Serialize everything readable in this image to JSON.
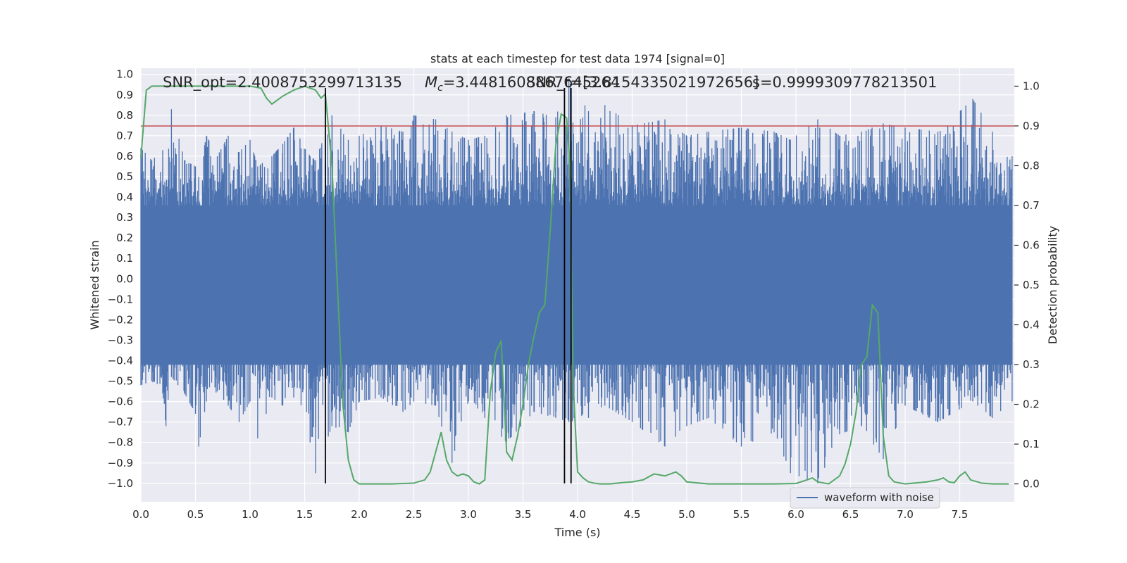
{
  "chart_data": {
    "type": "line",
    "title": "stats at each timestep for test data 1974 [signal=0]",
    "xlabel": "Time (s)",
    "ylabel": "Whitened strain",
    "y2label": "Detection probability",
    "xlim": [
      0.0,
      8.0
    ],
    "ylim": [
      -1.09,
      1.03
    ],
    "y2lim": [
      -0.045,
      1.045
    ],
    "xticks": [
      "0.0",
      "0.5",
      "1.0",
      "1.5",
      "2.0",
      "2.5",
      "3.0",
      "3.5",
      "4.0",
      "4.5",
      "5.0",
      "5.5",
      "6.0",
      "6.5",
      "7.0",
      "7.5"
    ],
    "yticks": [
      "1.0",
      "0.9",
      "0.8",
      "0.7",
      "0.6",
      "0.5",
      "0.4",
      "0.3",
      "0.2",
      "0.1",
      "0.0",
      "−0.1",
      "−0.2",
      "−0.3",
      "−0.4",
      "−0.5",
      "−0.6",
      "−0.7",
      "−0.8",
      "−0.9",
      "−1.0"
    ],
    "y2ticks": [
      "1.0",
      "0.9",
      "0.8",
      "0.7",
      "0.6",
      "0.5",
      "0.4",
      "0.3",
      "0.2",
      "0.1",
      "0.0"
    ],
    "annotations": [
      {
        "text": "SNR_opt=2.4008753299713135",
        "x": 0.2
      },
      {
        "text": "=3.4481608867645264",
        "x": 2.6,
        "prefix_symbol": "M",
        "prefix_sub": "c"
      },
      {
        "text": "SNR_t=[3.8154335021972656]",
        "x": 3.53
      },
      {
        "text": "s=0.9999309778213501",
        "x": 5.6
      }
    ],
    "mc_symbol": "M",
    "mc_subscript": "c",
    "threshold_line": {
      "y2": 0.9,
      "color": "#c44e52"
    },
    "vertical_lines": [
      1.69,
      3.88,
      3.94
    ],
    "legend": [
      {
        "label": "waveform with noise",
        "color": "#4c72b0"
      }
    ],
    "legend_position": "lower-right",
    "series": [
      {
        "name": "waveform with noise",
        "color": "#4c72b0",
        "axis": "left",
        "extremes": [
          {
            "t": 0.0,
            "hi": 0.64,
            "lo": -0.52
          },
          {
            "t": 0.1,
            "hi": 0.58,
            "lo": -0.5
          },
          {
            "t": 0.2,
            "hi": 0.63,
            "lo": -0.56
          },
          {
            "t": 0.23,
            "hi": 0.45,
            "lo": -0.72
          },
          {
            "t": 0.28,
            "hi": 0.83,
            "lo": -0.48
          },
          {
            "t": 0.4,
            "hi": 0.58,
            "lo": -0.56
          },
          {
            "t": 0.5,
            "hi": 0.55,
            "lo": -0.66
          },
          {
            "t": 0.53,
            "hi": 0.5,
            "lo": -0.82
          },
          {
            "t": 0.6,
            "hi": 0.7,
            "lo": -0.6
          },
          {
            "t": 0.7,
            "hi": 0.6,
            "lo": -0.55
          },
          {
            "t": 0.8,
            "hi": 0.7,
            "lo": -0.62
          },
          {
            "t": 0.9,
            "hi": 0.62,
            "lo": -0.7
          },
          {
            "t": 1.0,
            "hi": 0.68,
            "lo": -0.6
          },
          {
            "t": 1.07,
            "hi": 0.55,
            "lo": -0.78
          },
          {
            "t": 1.2,
            "hi": 0.6,
            "lo": -0.58
          },
          {
            "t": 1.3,
            "hi": 0.66,
            "lo": -0.62
          },
          {
            "t": 1.4,
            "hi": 0.74,
            "lo": -0.58
          },
          {
            "t": 1.55,
            "hi": 0.6,
            "lo": -0.8
          },
          {
            "t": 1.6,
            "hi": 0.58,
            "lo": -0.95
          },
          {
            "t": 1.75,
            "hi": 0.8,
            "lo": -0.72
          },
          {
            "t": 1.9,
            "hi": 0.68,
            "lo": -0.75
          },
          {
            "t": 2.0,
            "hi": 0.7,
            "lo": -0.6
          },
          {
            "t": 2.2,
            "hi": 0.75,
            "lo": -0.58
          },
          {
            "t": 2.4,
            "hi": 0.72,
            "lo": -0.65
          },
          {
            "t": 2.5,
            "hi": 0.8,
            "lo": -0.6
          },
          {
            "t": 2.7,
            "hi": 0.78,
            "lo": -0.62
          },
          {
            "t": 2.85,
            "hi": 0.72,
            "lo": -0.9
          },
          {
            "t": 3.0,
            "hi": 0.68,
            "lo": -0.6
          },
          {
            "t": 3.15,
            "hi": 0.7,
            "lo": -0.68
          },
          {
            "t": 3.35,
            "hi": 0.8,
            "lo": -0.8
          },
          {
            "t": 3.6,
            "hi": 0.82,
            "lo": -0.65
          },
          {
            "t": 3.8,
            "hi": 0.79,
            "lo": -0.68
          },
          {
            "t": 3.92,
            "hi": 0.98,
            "lo": -0.7
          },
          {
            "t": 4.1,
            "hi": 0.82,
            "lo": -0.68
          },
          {
            "t": 4.25,
            "hi": 0.85,
            "lo": -0.62
          },
          {
            "t": 4.5,
            "hi": 0.75,
            "lo": -0.7
          },
          {
            "t": 4.8,
            "hi": 0.78,
            "lo": -0.82
          },
          {
            "t": 5.0,
            "hi": 0.7,
            "lo": -0.72
          },
          {
            "t": 5.2,
            "hi": 0.72,
            "lo": -0.68
          },
          {
            "t": 5.5,
            "hi": 0.74,
            "lo": -0.82
          },
          {
            "t": 5.8,
            "hi": 0.72,
            "lo": -0.75
          },
          {
            "t": 5.95,
            "hi": 0.68,
            "lo": -0.95
          },
          {
            "t": 6.2,
            "hi": 0.78,
            "lo": -1.0
          },
          {
            "t": 6.4,
            "hi": 0.7,
            "lo": -0.76
          },
          {
            "t": 6.6,
            "hi": 0.72,
            "lo": -0.72
          },
          {
            "t": 6.8,
            "hi": 0.76,
            "lo": -0.88
          },
          {
            "t": 7.0,
            "hi": 0.74,
            "lo": -0.62
          },
          {
            "t": 7.3,
            "hi": 0.72,
            "lo": -0.7
          },
          {
            "t": 7.62,
            "hi": 0.88,
            "lo": -0.6
          },
          {
            "t": 7.8,
            "hi": 0.72,
            "lo": -0.68
          },
          {
            "t": 7.98,
            "hi": 0.6,
            "lo": -0.6
          }
        ]
      },
      {
        "name": "detection probability",
        "color": "#55a868",
        "axis": "right",
        "x": [
          0.0,
          0.05,
          0.1,
          0.2,
          0.5,
          0.8,
          1.0,
          1.1,
          1.15,
          1.2,
          1.3,
          1.4,
          1.5,
          1.6,
          1.65,
          1.69,
          1.75,
          1.8,
          1.85,
          1.9,
          1.95,
          2.0,
          2.1,
          2.2,
          2.3,
          2.5,
          2.6,
          2.65,
          2.7,
          2.75,
          2.8,
          2.85,
          2.9,
          2.95,
          3.0,
          3.05,
          3.1,
          3.15,
          3.2,
          3.25,
          3.3,
          3.35,
          3.4,
          3.45,
          3.5,
          3.55,
          3.6,
          3.65,
          3.7,
          3.75,
          3.8,
          3.85,
          3.9,
          3.93,
          3.96,
          4.0,
          4.05,
          4.1,
          4.15,
          4.2,
          4.3,
          4.4,
          4.5,
          4.6,
          4.7,
          4.8,
          4.85,
          4.9,
          4.95,
          5.0,
          5.2,
          5.5,
          5.8,
          6.0,
          6.1,
          6.15,
          6.2,
          6.3,
          6.4,
          6.45,
          6.5,
          6.55,
          6.6,
          6.65,
          6.7,
          6.75,
          6.8,
          6.85,
          6.9,
          7.0,
          7.2,
          7.3,
          7.35,
          7.4,
          7.45,
          7.5,
          7.55,
          7.6,
          7.7,
          7.8,
          7.95
        ],
        "values": [
          0.82,
          0.99,
          1.0,
          1.0,
          1.0,
          1.0,
          1.0,
          0.995,
          0.97,
          0.955,
          0.975,
          0.99,
          1.0,
          0.99,
          0.97,
          0.98,
          0.8,
          0.5,
          0.2,
          0.06,
          0.01,
          0.0,
          0.0,
          0.0,
          0.0,
          0.002,
          0.01,
          0.03,
          0.08,
          0.13,
          0.06,
          0.03,
          0.02,
          0.025,
          0.02,
          0.005,
          0.0,
          0.01,
          0.23,
          0.33,
          0.36,
          0.08,
          0.06,
          0.12,
          0.2,
          0.3,
          0.37,
          0.43,
          0.45,
          0.64,
          0.85,
          0.93,
          0.92,
          0.8,
          0.25,
          0.03,
          0.015,
          0.005,
          0.002,
          0.0,
          0.0,
          0.003,
          0.005,
          0.01,
          0.025,
          0.02,
          0.025,
          0.03,
          0.02,
          0.005,
          0.0,
          0.0,
          0.0,
          0.001,
          0.01,
          0.015,
          0.005,
          0.0,
          0.02,
          0.05,
          0.1,
          0.18,
          0.3,
          0.32,
          0.45,
          0.43,
          0.12,
          0.02,
          0.005,
          0.0,
          0.005,
          0.01,
          0.015,
          0.005,
          0.003,
          0.02,
          0.03,
          0.01,
          0.002,
          0.0,
          0.0
        ]
      }
    ]
  }
}
